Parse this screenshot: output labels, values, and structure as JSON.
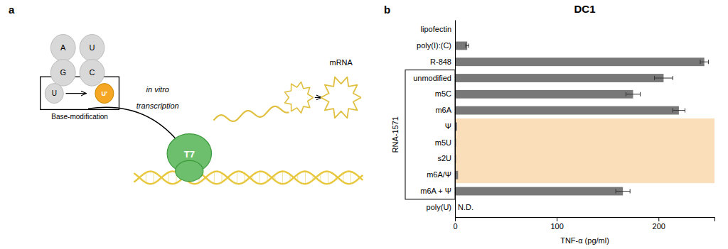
{
  "chart_data": {
    "type": "bar",
    "orientation": "horizontal",
    "title": "DC1",
    "xlabel": "TNF-α (pg/ml)",
    "ylabel": "RNA-1571",
    "categories": [
      "lipofectin",
      "poly(I):(C)",
      "R-848",
      "unmodified",
      "m5C",
      "m6A",
      "Ψ",
      "m5U",
      "s2U",
      "m6A/Ψ",
      "m6A + Ψ",
      "poly(U)"
    ],
    "values": [
      0,
      12,
      245,
      205,
      175,
      220,
      2,
      1,
      1,
      3,
      165,
      0
    ],
    "errors": [
      0,
      1.5,
      4,
      9,
      7,
      6,
      0,
      0,
      0,
      0,
      7,
      0
    ],
    "color": "#787878",
    "xlim": [
      0,
      255
    ],
    "xticks": [
      0,
      100,
      200
    ],
    "annotations": [
      {
        "type": "band",
        "categories": [
          "Ψ",
          "m5U",
          "s2U",
          "m6A/Ψ"
        ],
        "color": "#F5C282"
      },
      {
        "type": "bracket",
        "categories": [
          "unmodified",
          "m5C",
          "m6A",
          "Ψ",
          "m5U",
          "s2U",
          "m6A/Ψ",
          "m6A + Ψ"
        ]
      },
      {
        "type": "label",
        "text": "N.D.",
        "category": "poly(U)"
      },
      {
        "type": "text",
        "text": "a"
      },
      {
        "type": "text",
        "text": "A"
      },
      {
        "type": "text",
        "text": "U"
      },
      {
        "type": "text",
        "text": "G"
      },
      {
        "type": "text",
        "text": "C"
      },
      {
        "type": "text",
        "text": "U"
      },
      {
        "type": "text",
        "text": "U'"
      },
      {
        "type": "text",
        "text": "Base-modification"
      },
      {
        "type": "text",
        "text": "in vitro"
      },
      {
        "type": "text",
        "text": "transcription"
      },
      {
        "type": "text",
        "text": "T7"
      },
      {
        "type": "text",
        "text": "mRNA"
      },
      {
        "type": "text",
        "text": "b"
      }
    ]
  }
}
